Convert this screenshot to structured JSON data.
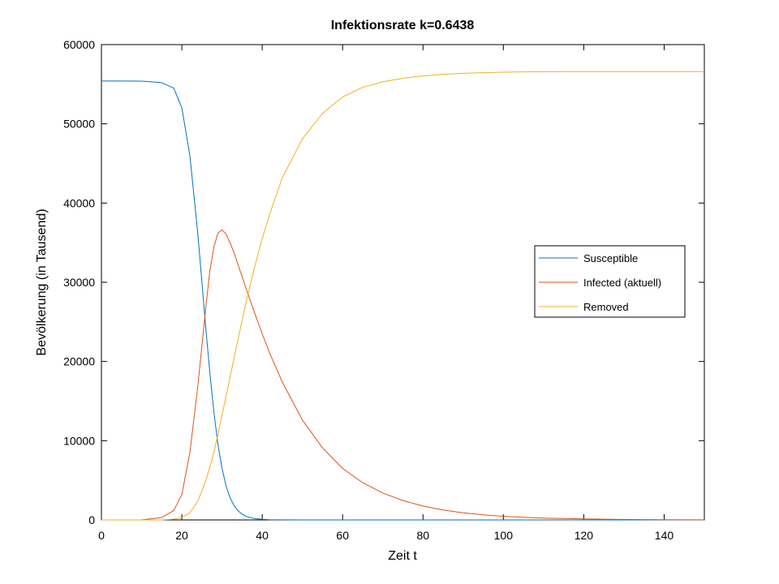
{
  "chart_data": {
    "type": "line",
    "title": "Infektionsrate k=0.6438",
    "xlabel": "Zeit t",
    "ylabel": "Bevölkerung (in Tausend)",
    "xlim": [
      0,
      150
    ],
    "ylim": [
      0,
      60000
    ],
    "xticks": [
      0,
      20,
      40,
      60,
      80,
      100,
      120,
      140
    ],
    "yticks": [
      0,
      10000,
      20000,
      30000,
      40000,
      50000,
      60000
    ],
    "grid": false,
    "legend_position": "right",
    "x": [
      0,
      5,
      10,
      15,
      18,
      20,
      22,
      24,
      26,
      27,
      28,
      29,
      30,
      31,
      32,
      33,
      34,
      35,
      36,
      38,
      40,
      42,
      45,
      50,
      55,
      60,
      65,
      70,
      75,
      80,
      85,
      90,
      95,
      100,
      105,
      110,
      115,
      120,
      125,
      130,
      140,
      150
    ],
    "series": [
      {
        "name": "Susceptible",
        "color": "#0072BD",
        "values": [
          55400,
          55400,
          55390,
          55200,
          54500,
          52000,
          46000,
          36000,
          24000,
          18500,
          13500,
          9500,
          6500,
          4300,
          2800,
          1800,
          1150,
          720,
          450,
          180,
          70,
          30,
          10,
          0,
          0,
          0,
          0,
          0,
          0,
          0,
          0,
          0,
          0,
          0,
          0,
          0,
          0,
          0,
          0,
          0,
          0,
          0
        ]
      },
      {
        "name": "Infected (aktuell)",
        "color": "#D95319",
        "values": [
          0,
          0,
          10,
          300,
          1200,
          3200,
          8500,
          17000,
          27000,
          31500,
          34500,
          36200,
          36600,
          36100,
          35000,
          33700,
          32200,
          30700,
          29200,
          26300,
          23500,
          20900,
          17400,
          12600,
          9100,
          6500,
          4700,
          3400,
          2450,
          1750,
          1260,
          900,
          650,
          460,
          330,
          240,
          170,
          120,
          90,
          60,
          30,
          15
        ]
      },
      {
        "name": "Removed",
        "color": "#EDB120",
        "values": [
          0,
          0,
          0,
          0,
          100,
          300,
          900,
          2400,
          5000,
          6700,
          8600,
          10800,
          13200,
          15600,
          18000,
          20500,
          22800,
          25200,
          27500,
          31700,
          35500,
          38800,
          43200,
          48100,
          51300,
          53400,
          54600,
          55300,
          55750,
          56050,
          56250,
          56380,
          56460,
          56520,
          56560,
          56580,
          56590,
          56600,
          56600,
          56600,
          56600,
          56600
        ]
      }
    ]
  }
}
